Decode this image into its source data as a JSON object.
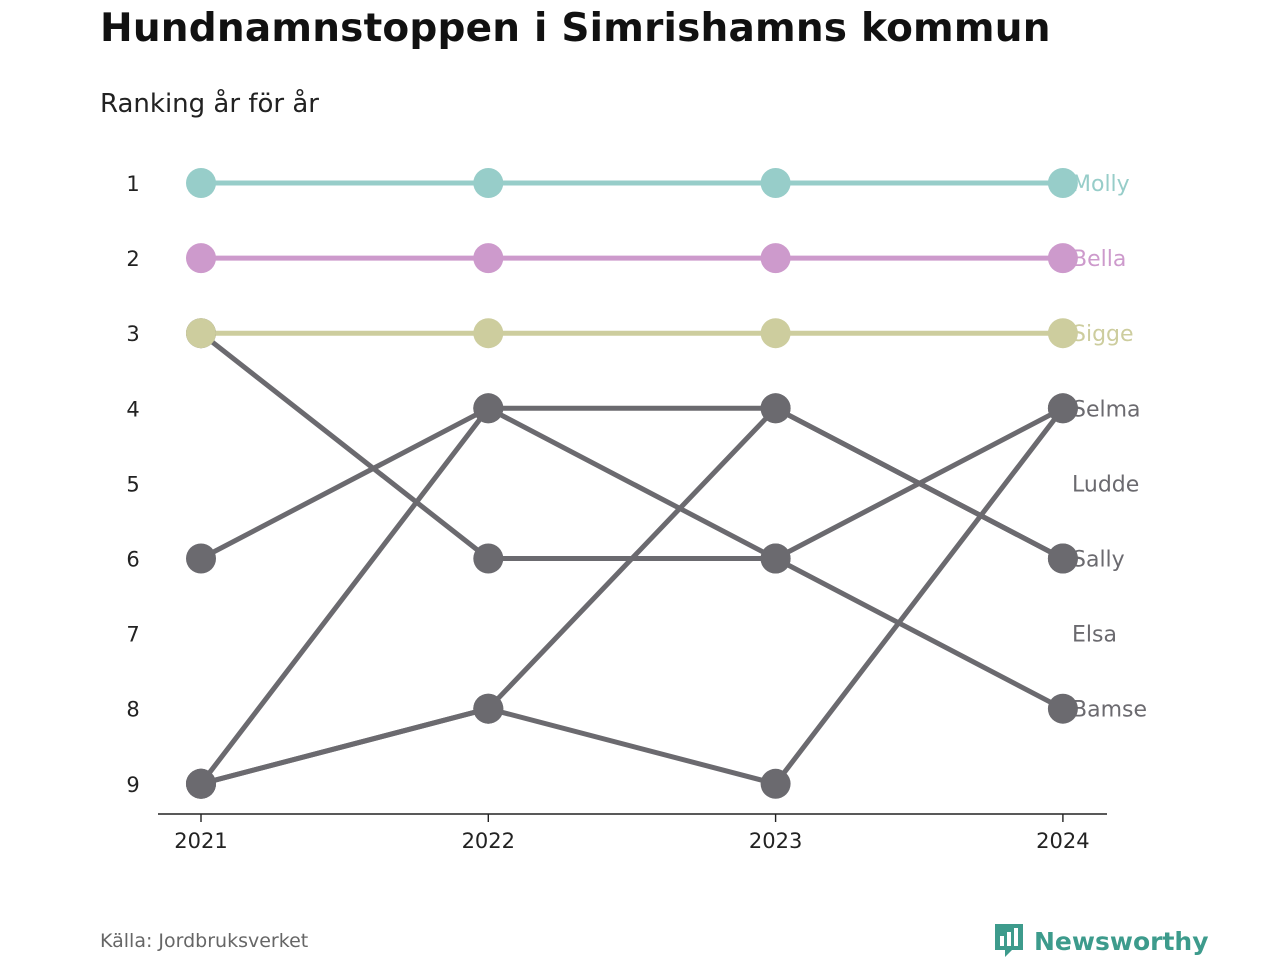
{
  "header": {
    "title": "Hundnamnstoppen i Simrishamns kommun",
    "subtitle": "Ranking år för år"
  },
  "footer": {
    "source": "Källa: Jordbruksverket",
    "brand": "Newsworthy"
  },
  "colors": {
    "highlight_1": "#97cdc9",
    "highlight_2": "#cd9acc",
    "highlight_3": "#cdcd9e",
    "other": "#6b6a6f",
    "axis": "#222222",
    "brand": "#3d9b8c"
  },
  "chart_data": {
    "type": "line",
    "subtype": "bump",
    "title": "Hundnamnstoppen i Simrishamns kommun",
    "subtitle": "Ranking år för år",
    "x": [
      "2021",
      "2022",
      "2023",
      "2024"
    ],
    "y_ticks": [
      1,
      2,
      3,
      4,
      5,
      6,
      7,
      8,
      9
    ],
    "y_inverted": true,
    "ylim": [
      1,
      9
    ],
    "grid": false,
    "series": [
      {
        "name": "Molly",
        "ranks": [
          1,
          1,
          1,
          1
        ],
        "color": "#97cdc9",
        "highlight": true
      },
      {
        "name": "Bella",
        "ranks": [
          2,
          2,
          2,
          2
        ],
        "color": "#cd9acc",
        "highlight": true
      },
      {
        "name": "Sigge",
        "ranks": [
          3,
          3,
          3,
          3
        ],
        "color": "#cdcd9e",
        "highlight": true
      },
      {
        "name": "Selma",
        "ranks": [
          9,
          8,
          9,
          4
        ],
        "color": "#6b6a6f",
        "highlight": false
      },
      {
        "name": "Ludde",
        "ranks": [
          9,
          4,
          6,
          4
        ],
        "color": "#6b6a6f",
        "highlight": false
      },
      {
        "name": "Sally",
        "ranks": [
          6,
          4,
          4,
          6
        ],
        "color": "#6b6a6f",
        "highlight": false
      },
      {
        "name": "Elsa",
        "ranks": [
          9,
          8,
          4,
          6
        ],
        "color": "#6b6a6f",
        "highlight": false
      },
      {
        "name": "Bamse",
        "ranks": [
          3,
          6,
          6,
          8
        ],
        "color": "#6b6a6f",
        "highlight": false
      }
    ],
    "end_labels": [
      {
        "text": "Molly",
        "rank": 1,
        "color": "#97cdc9"
      },
      {
        "text": "Bella",
        "rank": 2,
        "color": "#cd9acc"
      },
      {
        "text": "Sigge",
        "rank": 3,
        "color": "#cdcd9e"
      },
      {
        "text": "Selma",
        "rank": 4,
        "color": "#6b6a6f"
      },
      {
        "text": "Ludde",
        "rank": 5,
        "color": "#6b6a6f"
      },
      {
        "text": "Sally",
        "rank": 6,
        "color": "#6b6a6f"
      },
      {
        "text": "Elsa",
        "rank": 7,
        "color": "#6b6a6f"
      },
      {
        "text": "Bamse",
        "rank": 8,
        "color": "#6b6a6f"
      }
    ]
  }
}
